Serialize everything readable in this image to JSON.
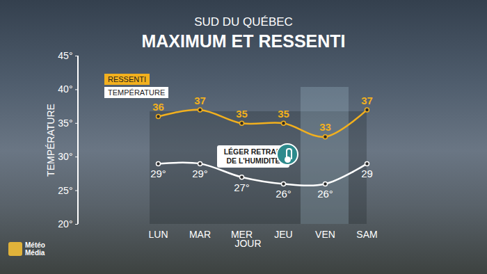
{
  "chart_data": {
    "type": "line",
    "title": "SUD DU QUÉBEC",
    "subtitle": "MAXIMUM ET RESSENTI",
    "x_label": "JOUR",
    "y_label": "TEMPÉRATURE",
    "categories": [
      "LUN",
      "MAR",
      "MER",
      "JEU",
      "VEN",
      "SAM"
    ],
    "series": [
      {
        "name": "RESSENTI",
        "color": "#f2b01e",
        "marker": "circle",
        "values": [
          36,
          37,
          35,
          35,
          33,
          37
        ]
      },
      {
        "name": "TEMPÉRATURE",
        "color": "#ffffff",
        "marker": "circle",
        "values": [
          29,
          29,
          27,
          26,
          26,
          29
        ],
        "value_labels": [
          "29°",
          "29°",
          "27°",
          "26°",
          "26°",
          "29"
        ]
      }
    ],
    "ylim": [
      20,
      45
    ],
    "yticks": [
      {
        "value": 20,
        "label": "20°"
      },
      {
        "value": 25,
        "label": "25°"
      },
      {
        "value": 30,
        "label": "30°"
      },
      {
        "value": 35,
        "label": "35°"
      },
      {
        "value": 40,
        "label": "40°"
      },
      {
        "value": 45,
        "label": "45°"
      }
    ],
    "data_labels": true,
    "grid": false,
    "legend": "top-left",
    "annotations": [
      {
        "text": "LÉGER RETRAIT\nDE L'HUMIDITÉ",
        "category": "VEN"
      }
    ],
    "source": "Météo Média"
  }
}
